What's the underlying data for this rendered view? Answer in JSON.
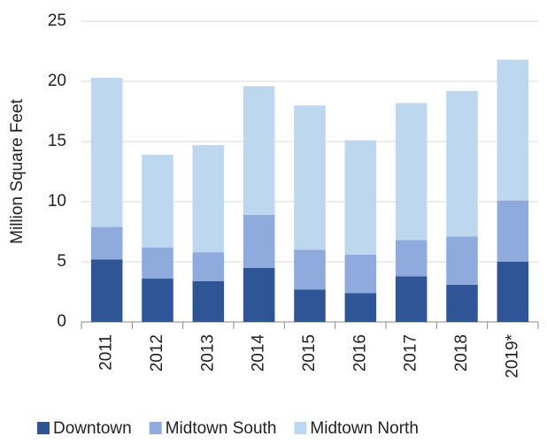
{
  "chart_data": {
    "type": "stacked_bar",
    "y_label": "Million Square Feet",
    "categories": [
      "2011",
      "2012",
      "2013",
      "2014",
      "2015",
      "2016",
      "2017",
      "2018",
      "2019*"
    ],
    "series": [
      {
        "name": "Downtown",
        "color": "#2f5597",
        "values": [
          5.2,
          3.6,
          3.4,
          4.5,
          2.7,
          2.4,
          3.8,
          3.1,
          5.0
        ]
      },
      {
        "name": "Midtown South",
        "color": "#8faadc",
        "values": [
          2.7,
          2.6,
          2.4,
          4.4,
          3.3,
          3.2,
          3.0,
          4.0,
          5.1
        ]
      },
      {
        "name": "Midtown North",
        "color": "#bdd7ee",
        "values": [
          12.4,
          7.7,
          8.9,
          10.7,
          12.0,
          9.5,
          11.4,
          12.1,
          11.7
        ]
      }
    ],
    "ylim": [
      0,
      25
    ],
    "yticks": [
      0,
      5,
      10,
      15,
      20,
      25
    ],
    "grid": true
  }
}
